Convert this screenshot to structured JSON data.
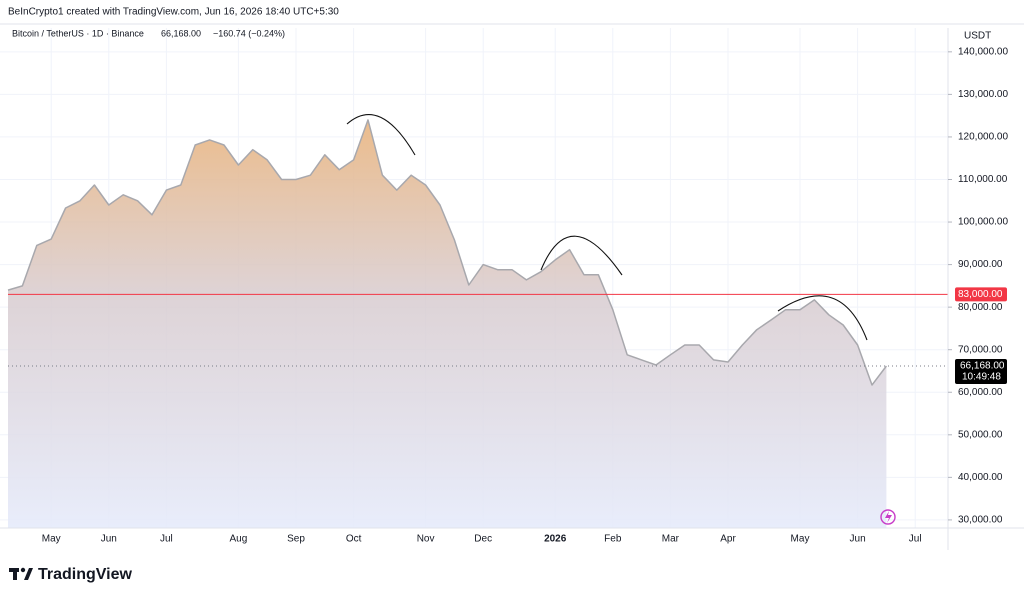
{
  "chart_data": {
    "type": "area",
    "header": "BeInCrypto1 created with TradingView.com, Jun 16, 2026 18:40 UTC+5:30",
    "subtitle": "Bitcoin / TetherUS · 1D · Binance",
    "price_text": "66,168.00",
    "change_text": "−160.74 (−0.24%)",
    "y_unit": "USDT",
    "brand": "TradingView",
    "categories": [
      null,
      null,
      null,
      "May",
      null,
      null,
      null,
      "Jun",
      null,
      null,
      null,
      "Jul",
      null,
      null,
      null,
      null,
      "Aug",
      null,
      null,
      null,
      "Sep",
      null,
      null,
      null,
      "Oct",
      null,
      null,
      null,
      null,
      "Nov",
      null,
      null,
      null,
      "Dec",
      null,
      null,
      null,
      null,
      "2026",
      null,
      null,
      null,
      "Feb",
      null,
      null,
      null,
      "Mar",
      null,
      null,
      null,
      "Apr",
      null,
      null,
      null,
      null,
      "May",
      null,
      null,
      null,
      "Jun",
      null,
      null,
      null,
      "Jul"
    ],
    "series": [
      {
        "name": "BTCUSDT",
        "color": "#a8a8ad",
        "values": [
          84000,
          85000,
          94500,
          96000,
          103300,
          105000,
          108700,
          104000,
          106400,
          105000,
          101700,
          107500,
          108700,
          118100,
          119300,
          118100,
          113400,
          117000,
          114600,
          110000,
          110000,
          111000,
          115800,
          112300,
          114600,
          124000,
          111000,
          107500,
          111000,
          108700,
          104000,
          95800,
          85200,
          90000,
          88800,
          88800,
          86400,
          88300,
          91100,
          93500,
          87600,
          87600,
          79400,
          68800,
          67600,
          66400,
          68800,
          71100,
          71100,
          67600,
          67100,
          71100,
          74700,
          77000,
          79400,
          79400,
          81700,
          78200,
          75800,
          71100,
          61700,
          66168,
          null,
          null
        ]
      }
    ],
    "ylim": [
      28100,
      145600
    ],
    "yticks": [
      {
        "value": 30000,
        "label": "30,000.00"
      },
      {
        "value": 40000,
        "label": "40,000.00"
      },
      {
        "value": 50000,
        "label": "50,000.00"
      },
      {
        "value": 60000,
        "label": "60,000.00"
      },
      {
        "value": 70000,
        "label": "70,000.00"
      },
      {
        "value": 80000,
        "label": "80,000.00"
      },
      {
        "value": 90000,
        "label": "90,000.00"
      },
      {
        "value": 100000,
        "label": "100,000.00"
      },
      {
        "value": 110000,
        "label": "110,000.00"
      },
      {
        "value": 120000,
        "label": "120,000.00"
      },
      {
        "value": 130000,
        "label": "130,000.00"
      },
      {
        "value": 140000,
        "label": "140,000.00"
      }
    ],
    "grid": true,
    "hline": {
      "value": 83000,
      "label": "83,000.00",
      "color": "#f23645"
    },
    "last_price": {
      "value": 66168,
      "label": "66,168.00",
      "countdown": "10:49:48"
    }
  }
}
